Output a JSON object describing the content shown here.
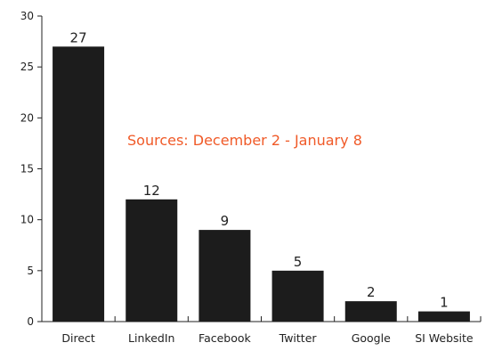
{
  "chart_data": {
    "type": "bar",
    "title": "",
    "xlabel": "",
    "ylabel": "",
    "categories": [
      "Direct",
      "LinkedIn",
      "Facebook",
      "Twitter",
      "Google",
      "SI Website"
    ],
    "values": [
      27,
      12,
      9,
      5,
      2,
      1
    ],
    "ylim": [
      0,
      30
    ],
    "yticks": [
      0,
      5,
      10,
      15,
      20,
      25,
      30
    ],
    "grid": false,
    "legend": "none",
    "data_labels": true,
    "bar_color": "#1c1c1c",
    "annotation": {
      "text": "Sources: December 2 - January 8",
      "color": "#f05a28"
    }
  }
}
